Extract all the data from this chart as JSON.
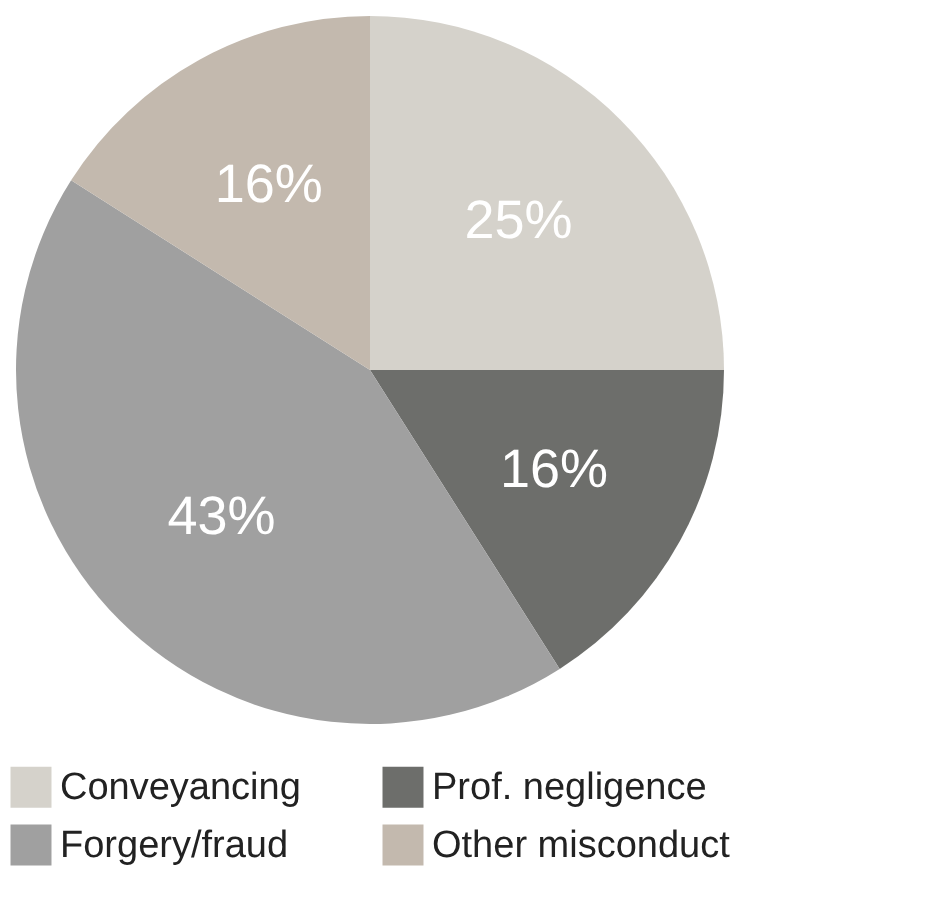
{
  "chart_data": {
    "type": "pie",
    "categories": [
      "Conveyancing",
      "Prof. negligence",
      "Forgery/fraud",
      "Other misconduct"
    ],
    "values": [
      25,
      16,
      43,
      16
    ],
    "colors": [
      "#d5d2cb",
      "#6d6e6b",
      "#a0a0a0",
      "#c3b9ae"
    ],
    "value_labels": [
      "25%",
      "16%",
      "43%",
      "16%"
    ],
    "legend": "bottom"
  }
}
